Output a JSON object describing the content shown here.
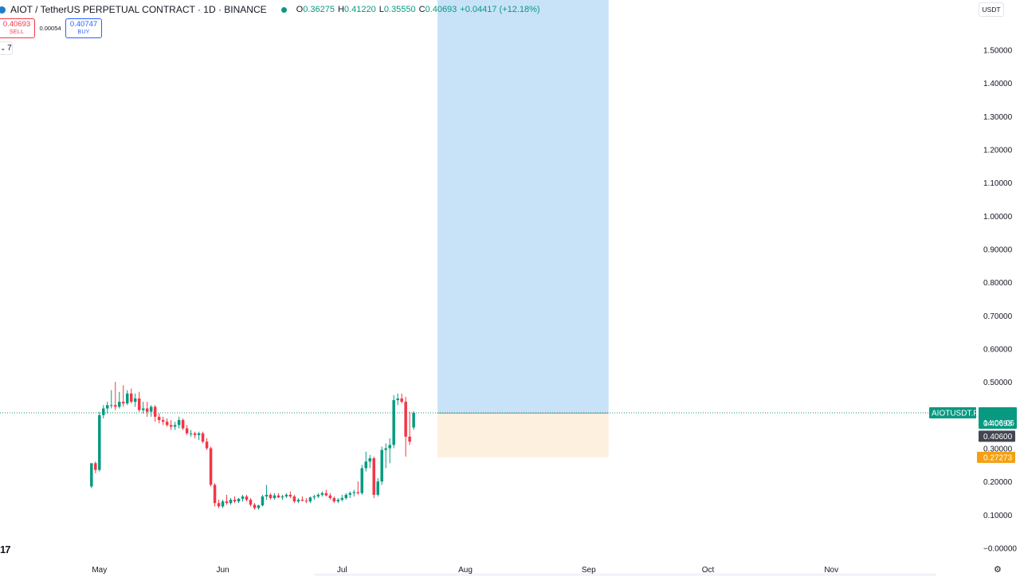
{
  "header": {
    "title": "AIOT / TetherUS PERPETUAL CONTRACT · 1D · BINANCE",
    "ohlc": [
      {
        "key": "O",
        "value": "0.36275"
      },
      {
        "key": "H",
        "value": "0.41220"
      },
      {
        "key": "L",
        "value": "0.35550"
      },
      {
        "key": "C",
        "value": "0.40693"
      }
    ],
    "change": "+0.04417 (+12.18%)"
  },
  "trade": {
    "sell_price": "0.40693",
    "sell_label": "SELL",
    "spread": "0.00054",
    "buy_price": "0.40747",
    "buy_label": "BUY"
  },
  "indicators_toggle": "7",
  "currency": "USDT",
  "logo_text": "17",
  "icons": [
    "chevron-down-icon",
    "settings-icon",
    "tradingview-logo-icon"
  ],
  "colors": {
    "up": "#089981",
    "down": "#f23645",
    "target_zone": "#c8e2f8",
    "stop_zone": "#fdf0de",
    "price_label": "#089981",
    "entry_label": "#434651",
    "stop_label": "#f5a012"
  },
  "price_labels": {
    "symbol": "AIOTUSDT.P",
    "last_price": "0.40693",
    "countdown": "14:06:06",
    "entry": "0.40600",
    "stop": "0.27273"
  },
  "chart_data": {
    "type": "candlestick",
    "title": "AIOT / TetherUS PERPETUAL CONTRACT",
    "y_ticks": [
      "1.50000",
      "1.40000",
      "1.30000",
      "1.20000",
      "1.10000",
      "1.00000",
      "0.90000",
      "0.80000",
      "0.70000",
      "0.60000",
      "0.50000",
      "0.40000",
      "0.30000",
      "0.20000",
      "0.10000",
      "−0.00000"
    ],
    "y_tick_values": [
      1.5,
      1.4,
      1.3,
      1.2,
      1.1,
      1.0,
      0.9,
      0.8,
      0.7,
      0.6,
      0.5,
      0.4,
      0.3,
      0.2,
      0.1,
      0
    ],
    "x_ticks": [
      "May",
      "Jun",
      "Jul",
      "Aug",
      "Sep",
      "Oct",
      "Nov"
    ],
    "x_tick_dates": [
      "2025-05-01",
      "2025-06-01",
      "2025-07-01",
      "2025-08-01",
      "2025-09-01",
      "2025-10-01",
      "2025-11-01"
    ],
    "x_range": [
      "2025-04-06",
      "2025-11-28"
    ],
    "y_range": [
      -0.03,
      1.65
    ],
    "last_price": 0.40693,
    "position": {
      "type": "long",
      "entry": 0.406,
      "stop": 0.27273,
      "target": 1.65,
      "start": "2025-07-25",
      "end": "2025-09-06"
    },
    "candles": [
      [
        "2025-04-29",
        0.185,
        0.255,
        0.18,
        0.255
      ],
      [
        "2025-04-30",
        0.255,
        0.26,
        0.225,
        0.235
      ],
      [
        "2025-05-01",
        0.235,
        0.41,
        0.23,
        0.4
      ],
      [
        "2025-05-02",
        0.4,
        0.43,
        0.39,
        0.42
      ],
      [
        "2025-05-03",
        0.42,
        0.44,
        0.405,
        0.43
      ],
      [
        "2025-05-04",
        0.43,
        0.475,
        0.42,
        0.43
      ],
      [
        "2025-05-05",
        0.43,
        0.5,
        0.415,
        0.425
      ],
      [
        "2025-05-06",
        0.425,
        0.47,
        0.42,
        0.44
      ],
      [
        "2025-05-07",
        0.44,
        0.49,
        0.425,
        0.435
      ],
      [
        "2025-05-08",
        0.435,
        0.475,
        0.43,
        0.465
      ],
      [
        "2025-05-09",
        0.465,
        0.48,
        0.435,
        0.44
      ],
      [
        "2025-05-10",
        0.44,
        0.465,
        0.425,
        0.45
      ],
      [
        "2025-05-11",
        0.45,
        0.47,
        0.41,
        0.415
      ],
      [
        "2025-05-12",
        0.415,
        0.44,
        0.405,
        0.42
      ],
      [
        "2025-05-13",
        0.42,
        0.44,
        0.395,
        0.41
      ],
      [
        "2025-05-14",
        0.41,
        0.43,
        0.395,
        0.425
      ],
      [
        "2025-05-15",
        0.425,
        0.43,
        0.38,
        0.395
      ],
      [
        "2025-05-16",
        0.395,
        0.405,
        0.375,
        0.385
      ],
      [
        "2025-05-17",
        0.385,
        0.395,
        0.37,
        0.38
      ],
      [
        "2025-05-18",
        0.38,
        0.39,
        0.365,
        0.37
      ],
      [
        "2025-05-19",
        0.37,
        0.385,
        0.355,
        0.365
      ],
      [
        "2025-05-20",
        0.365,
        0.38,
        0.355,
        0.37
      ],
      [
        "2025-05-21",
        0.37,
        0.395,
        0.36,
        0.385
      ],
      [
        "2025-05-22",
        0.385,
        0.39,
        0.355,
        0.36
      ],
      [
        "2025-05-23",
        0.36,
        0.37,
        0.34,
        0.345
      ],
      [
        "2025-05-24",
        0.345,
        0.355,
        0.335,
        0.345
      ],
      [
        "2025-05-25",
        0.345,
        0.35,
        0.33,
        0.34
      ],
      [
        "2025-05-26",
        0.34,
        0.35,
        0.325,
        0.345
      ],
      [
        "2025-05-27",
        0.345,
        0.35,
        0.315,
        0.32
      ],
      [
        "2025-05-28",
        0.32,
        0.33,
        0.295,
        0.3
      ],
      [
        "2025-05-29",
        0.3,
        0.305,
        0.185,
        0.19
      ],
      [
        "2025-05-30",
        0.19,
        0.195,
        0.125,
        0.135
      ],
      [
        "2025-05-31",
        0.135,
        0.145,
        0.12,
        0.125
      ],
      [
        "2025-06-01",
        0.125,
        0.145,
        0.12,
        0.14
      ],
      [
        "2025-06-02",
        0.14,
        0.16,
        0.13,
        0.135
      ],
      [
        "2025-06-03",
        0.135,
        0.15,
        0.13,
        0.145
      ],
      [
        "2025-06-04",
        0.145,
        0.155,
        0.135,
        0.14
      ],
      [
        "2025-06-05",
        0.14,
        0.15,
        0.135,
        0.148
      ],
      [
        "2025-06-06",
        0.148,
        0.16,
        0.14,
        0.155
      ],
      [
        "2025-06-07",
        0.155,
        0.16,
        0.14,
        0.145
      ],
      [
        "2025-06-08",
        0.145,
        0.15,
        0.125,
        0.13
      ],
      [
        "2025-06-09",
        0.13,
        0.135,
        0.115,
        0.12
      ],
      [
        "2025-06-10",
        0.12,
        0.13,
        0.115,
        0.128
      ],
      [
        "2025-06-11",
        0.128,
        0.16,
        0.125,
        0.155
      ],
      [
        "2025-06-12",
        0.155,
        0.19,
        0.145,
        0.16
      ],
      [
        "2025-06-13",
        0.16,
        0.165,
        0.145,
        0.15
      ],
      [
        "2025-06-14",
        0.15,
        0.165,
        0.145,
        0.158
      ],
      [
        "2025-06-15",
        0.158,
        0.165,
        0.15,
        0.152
      ],
      [
        "2025-06-16",
        0.152,
        0.16,
        0.145,
        0.155
      ],
      [
        "2025-06-17",
        0.155,
        0.165,
        0.15,
        0.16
      ],
      [
        "2025-06-18",
        0.16,
        0.17,
        0.15,
        0.155
      ],
      [
        "2025-06-19",
        0.155,
        0.16,
        0.135,
        0.14
      ],
      [
        "2025-06-20",
        0.14,
        0.15,
        0.135,
        0.145
      ],
      [
        "2025-06-21",
        0.145,
        0.155,
        0.14,
        0.142
      ],
      [
        "2025-06-22",
        0.142,
        0.15,
        0.135,
        0.14
      ],
      [
        "2025-06-23",
        0.14,
        0.155,
        0.135,
        0.152
      ],
      [
        "2025-06-24",
        0.152,
        0.16,
        0.145,
        0.155
      ],
      [
        "2025-06-25",
        0.155,
        0.165,
        0.15,
        0.16
      ],
      [
        "2025-06-26",
        0.16,
        0.17,
        0.155,
        0.165
      ],
      [
        "2025-06-27",
        0.165,
        0.175,
        0.155,
        0.158
      ],
      [
        "2025-06-28",
        0.158,
        0.165,
        0.145,
        0.15
      ],
      [
        "2025-06-29",
        0.15,
        0.155,
        0.135,
        0.14
      ],
      [
        "2025-06-30",
        0.14,
        0.15,
        0.135,
        0.145
      ],
      [
        "2025-07-01",
        0.145,
        0.16,
        0.14,
        0.15
      ],
      [
        "2025-07-02",
        0.15,
        0.165,
        0.145,
        0.16
      ],
      [
        "2025-07-03",
        0.16,
        0.17,
        0.15,
        0.165
      ],
      [
        "2025-07-04",
        0.165,
        0.175,
        0.155,
        0.168
      ],
      [
        "2025-07-05",
        0.168,
        0.2,
        0.16,
        0.165
      ],
      [
        "2025-07-06",
        0.165,
        0.25,
        0.16,
        0.24
      ],
      [
        "2025-07-07",
        0.24,
        0.29,
        0.23,
        0.26
      ],
      [
        "2025-07-08",
        0.26,
        0.28,
        0.24,
        0.27
      ],
      [
        "2025-07-09",
        0.27,
        0.275,
        0.15,
        0.16
      ],
      [
        "2025-07-10",
        0.16,
        0.21,
        0.155,
        0.2
      ],
      [
        "2025-07-11",
        0.2,
        0.305,
        0.19,
        0.295
      ],
      [
        "2025-07-12",
        0.295,
        0.315,
        0.24,
        0.3
      ],
      [
        "2025-07-13",
        0.3,
        0.33,
        0.255,
        0.31
      ],
      [
        "2025-07-14",
        0.31,
        0.46,
        0.3,
        0.445
      ],
      [
        "2025-07-15",
        0.445,
        0.465,
        0.43,
        0.45
      ],
      [
        "2025-07-16",
        0.45,
        0.465,
        0.435,
        0.44
      ],
      [
        "2025-07-17",
        0.44,
        0.455,
        0.275,
        0.335
      ],
      [
        "2025-07-18",
        0.335,
        0.41,
        0.31,
        0.32
      ],
      [
        "2025-07-19",
        0.36275,
        0.4122,
        0.3555,
        0.40693
      ]
    ]
  }
}
